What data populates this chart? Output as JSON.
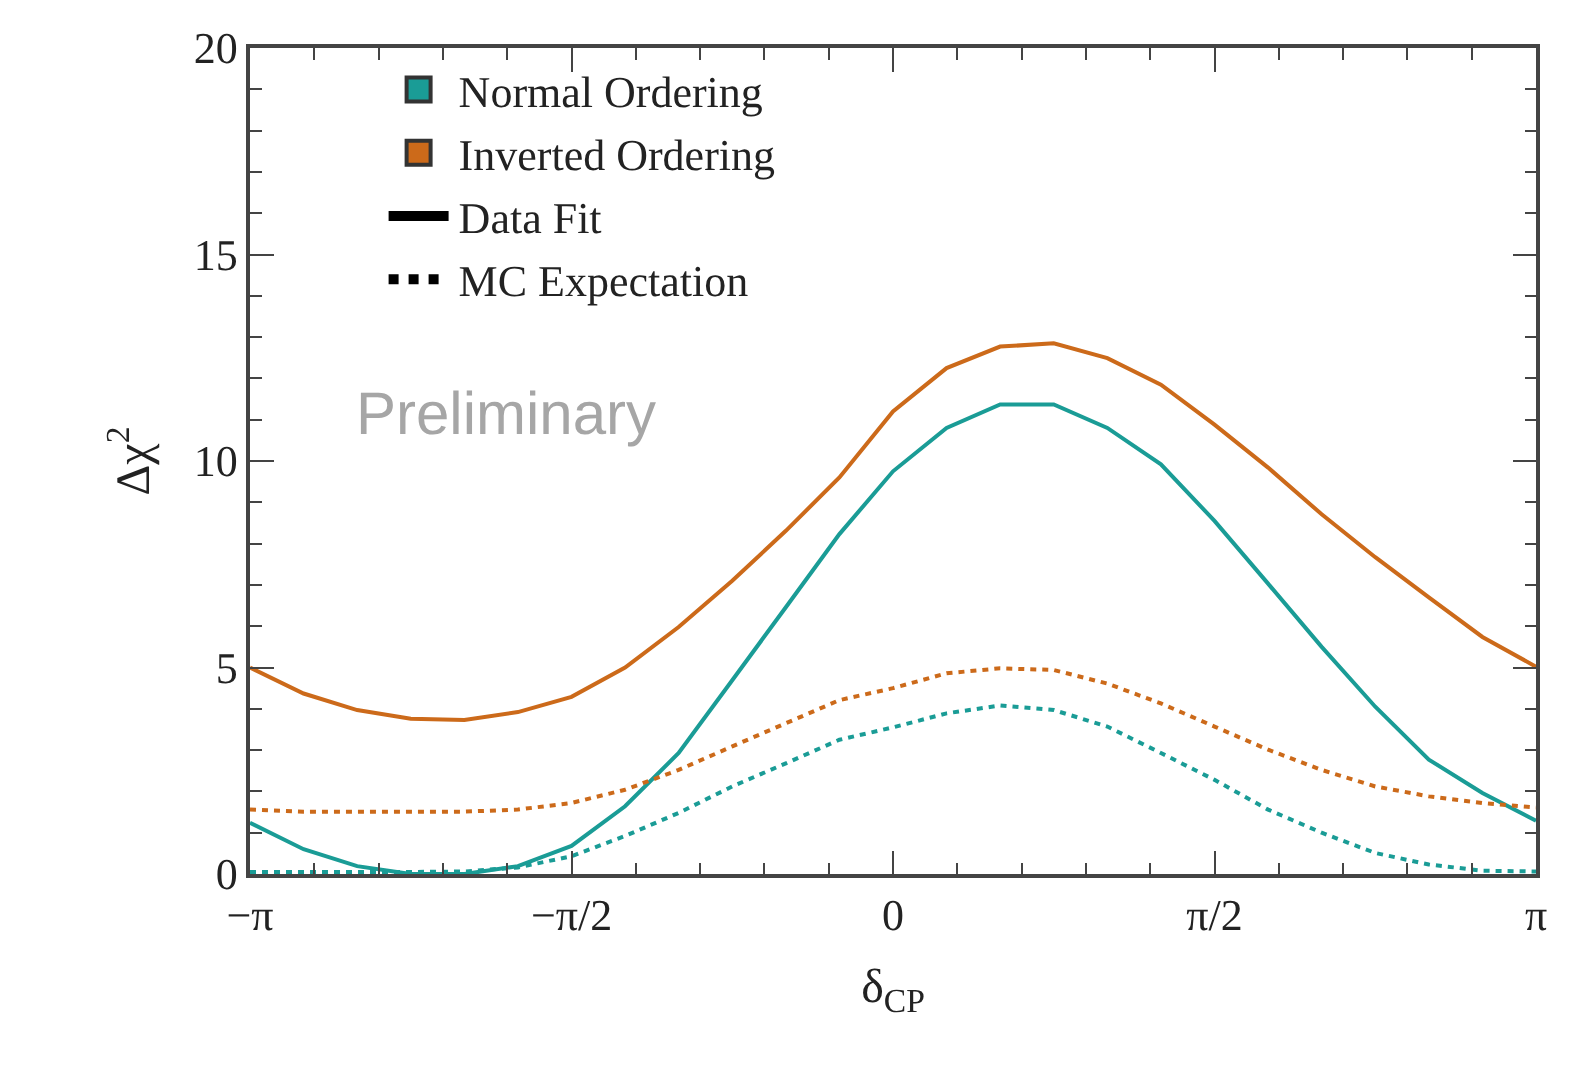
{
  "chart_data": {
    "type": "line",
    "xlabel": "δ$_{CP}$",
    "ylabel": "Δχ$^{2}$",
    "x": [
      -3.1416,
      -2.8798,
      -2.618,
      -2.3562,
      -2.0944,
      -1.8326,
      -1.5708,
      -1.309,
      -1.0472,
      -0.7854,
      -0.5236,
      -0.2618,
      0,
      0.2618,
      0.5236,
      0.7854,
      1.0472,
      1.309,
      1.5708,
      1.8326,
      2.0944,
      2.3562,
      2.618,
      2.8798,
      3.1416
    ],
    "series": [
      {
        "name": "Normal Ordering",
        "color": "#1a9c96",
        "line_style": "solid",
        "values": [
          1.24,
          0.6,
          0.19,
          0,
          0,
          0.19,
          0.68,
          1.64,
          2.93,
          4.69,
          6.46,
          8.23,
          9.75,
          10.8,
          11.37,
          11.37,
          10.8,
          9.92,
          8.55,
          7.03,
          5.5,
          4.05,
          2.77,
          1.96,
          1.29
        ]
      },
      {
        "name": "Inverted Ordering",
        "color": "#cc6a1a",
        "line_style": "solid",
        "values": [
          5.0,
          4.37,
          3.97,
          3.76,
          3.73,
          3.92,
          4.29,
          5.0,
          5.98,
          7.1,
          8.31,
          9.6,
          11.2,
          12.25,
          12.77,
          12.85,
          12.49,
          11.85,
          10.88,
          9.84,
          8.71,
          7.67,
          6.7,
          5.74,
          5.02
        ]
      },
      {
        "color": "#1a9c96",
        "line_style": "dotted",
        "values": [
          0.05,
          0.05,
          0.05,
          0.05,
          0.06,
          0.16,
          0.43,
          0.92,
          1.48,
          2.12,
          2.68,
          3.25,
          3.55,
          3.89,
          4.08,
          3.97,
          3.57,
          2.93,
          2.28,
          1.56,
          1.0,
          0.51,
          0.23,
          0.08,
          0.06
        ]
      },
      {
        "color": "#cc6a1a",
        "line_style": "dotted",
        "values": [
          1.56,
          1.51,
          1.51,
          1.51,
          1.51,
          1.56,
          1.72,
          2.04,
          2.52,
          3.09,
          3.65,
          4.21,
          4.5,
          4.86,
          4.98,
          4.94,
          4.61,
          4.13,
          3.57,
          3.01,
          2.52,
          2.12,
          1.88,
          1.72,
          1.61
        ]
      }
    ],
    "xlim": [
      -3.1416,
      3.1416
    ],
    "xticks": [
      {
        "value": -3.1416,
        "label": "−π"
      },
      {
        "value": -1.5708,
        "label": "−π/2"
      },
      0,
      {
        "value": 1.5708,
        "label": "π/2"
      },
      {
        "value": 3.1416,
        "label": "π"
      }
    ],
    "ylim": [
      0,
      20
    ],
    "yticks": [
      0,
      5,
      10,
      15,
      20
    ],
    "legend": "top left",
    "marker": "none",
    "annotations": [
      "Data Fit",
      "MC Expectation",
      "Preliminary"
    ]
  }
}
